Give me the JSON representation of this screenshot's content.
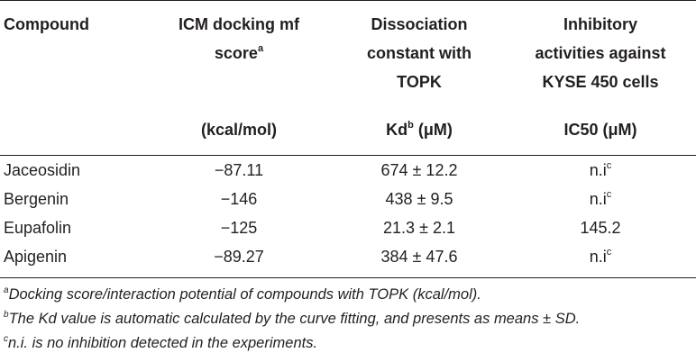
{
  "table": {
    "headers": {
      "compound": "Compound",
      "icm_line1": "ICM docking mf",
      "icm_line2": "score",
      "icm_sup": "a",
      "kd_line1": "Dissociation",
      "kd_line2": "constant with",
      "kd_line3": "TOPK",
      "inh_line1": "Inhibitory",
      "inh_line2": "activities against",
      "inh_line3": "KYSE 450 cells"
    },
    "units": {
      "icm": "(kcal/mol)",
      "kd_main": "Kd",
      "kd_sup": "b",
      "kd_unit": " (μM)",
      "ic50": "IC50 (μM)"
    },
    "rows": [
      {
        "compound": "Jaceosidin",
        "icm": "−87.11",
        "kd": "674 ± 12.2",
        "ic50": "n.i",
        "ic50_sup": "c"
      },
      {
        "compound": "Bergenin",
        "icm": "−146",
        "kd": "438 ± 9.5",
        "ic50": "n.i",
        "ic50_sup": "c"
      },
      {
        "compound": "Eupafolin",
        "icm": "−125",
        "kd": "21.3 ± 2.1",
        "ic50": "145.2",
        "ic50_sup": ""
      },
      {
        "compound": "Apigenin",
        "icm": "−89.27",
        "kd": "384 ± 47.6",
        "ic50": "n.i",
        "ic50_sup": "c"
      }
    ]
  },
  "footnotes": [
    {
      "mark": "a",
      "text": "Docking score/interaction potential of compounds with TOPK (kcal/mol)."
    },
    {
      "mark": "b",
      "text": "The Kd value is automatic calculated by the curve fitting, and presents as means ± SD."
    },
    {
      "mark": "c",
      "text": "n.i. is no inhibition detected in the experiments."
    }
  ]
}
